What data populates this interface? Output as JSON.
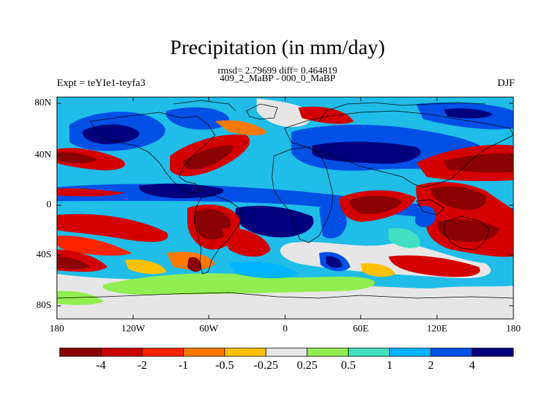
{
  "title": "Precipitation (in mm/day)",
  "stats_line": "rmsd= 2.79699 diff= 0.464819",
  "experiment_diff": "409_2_MaBP - 000_0_MaBP",
  "experiment_label": "Expt = teYIe1-teyfa3",
  "season": "DJF",
  "lat_ticks": [
    "80N",
    "40N",
    "0",
    "40S",
    "80S"
  ],
  "lon_ticks": [
    "180",
    "120W",
    "60W",
    "0",
    "60E",
    "120E",
    "180"
  ],
  "colorbar": {
    "colors": [
      "#8b0000",
      "#c80000",
      "#ff2400",
      "#ff7800",
      "#ffc000",
      "#e6e6e6",
      "#90ee50",
      "#40e0c0",
      "#00b4ff",
      "#0050e6",
      "#00007f"
    ],
    "labels": [
      "-4",
      "-2",
      "-1",
      "-0.5",
      "-0.25",
      "0.25",
      "0.5",
      "1",
      "2",
      "4"
    ]
  },
  "map_colors": {
    "background": "#1fbde8",
    "dark_red": "#8b0000",
    "red": "#d40000",
    "red_orange": "#ff2400",
    "orange": "#ff7800",
    "yellow": "#ffc000",
    "grey": "#e6e6e6",
    "green": "#90ee50",
    "turquoise": "#40e0c0",
    "light_blue": "#00b4ff",
    "blue": "#0050e6",
    "navy": "#00007f"
  }
}
